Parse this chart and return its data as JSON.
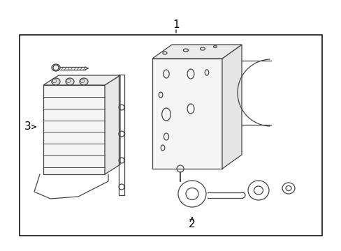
{
  "background_color": "#ffffff",
  "border_color": "#000000",
  "line_color": "#444444",
  "fig_width": 4.89,
  "fig_height": 3.6,
  "dpi": 100,
  "label1": "1",
  "label2": "2",
  "label3": "3"
}
